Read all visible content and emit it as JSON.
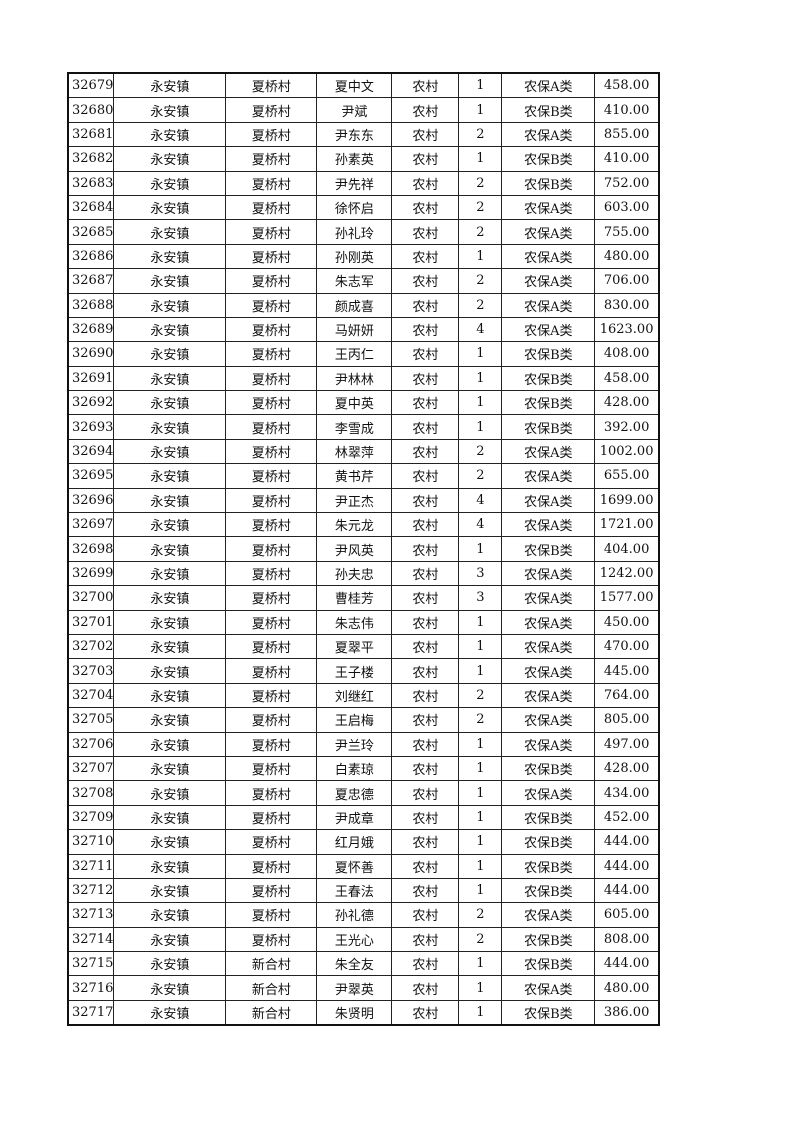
{
  "rows": [
    [
      "32679",
      "永安镇",
      "夏桥村",
      "夏中文",
      "农村",
      "1",
      "农保A类",
      "458.00"
    ],
    [
      "32680",
      "永安镇",
      "夏桥村",
      "尹斌",
      "农村",
      "1",
      "农保B类",
      "410.00"
    ],
    [
      "32681",
      "永安镇",
      "夏桥村",
      "尹东东",
      "农村",
      "2",
      "农保A类",
      "855.00"
    ],
    [
      "32682",
      "永安镇",
      "夏桥村",
      "孙素英",
      "农村",
      "1",
      "农保B类",
      "410.00"
    ],
    [
      "32683",
      "永安镇",
      "夏桥村",
      "尹先祥",
      "农村",
      "2",
      "农保B类",
      "752.00"
    ],
    [
      "32684",
      "永安镇",
      "夏桥村",
      "徐怀启",
      "农村",
      "2",
      "农保A类",
      "603.00"
    ],
    [
      "32685",
      "永安镇",
      "夏桥村",
      "孙礼玲",
      "农村",
      "2",
      "农保A类",
      "755.00"
    ],
    [
      "32686",
      "永安镇",
      "夏桥村",
      "孙刚英",
      "农村",
      "1",
      "农保A类",
      "480.00"
    ],
    [
      "32687",
      "永安镇",
      "夏桥村",
      "朱志军",
      "农村",
      "2",
      "农保A类",
      "706.00"
    ],
    [
      "32688",
      "永安镇",
      "夏桥村",
      "颜成喜",
      "农村",
      "2",
      "农保A类",
      "830.00"
    ],
    [
      "32689",
      "永安镇",
      "夏桥村",
      "马妍妍",
      "农村",
      "4",
      "农保A类",
      "1623.00"
    ],
    [
      "32690",
      "永安镇",
      "夏桥村",
      "王丙仁",
      "农村",
      "1",
      "农保B类",
      "408.00"
    ],
    [
      "32691",
      "永安镇",
      "夏桥村",
      "尹林林",
      "农村",
      "1",
      "农保B类",
      "458.00"
    ],
    [
      "32692",
      "永安镇",
      "夏桥村",
      "夏中英",
      "农村",
      "1",
      "农保B类",
      "428.00"
    ],
    [
      "32693",
      "永安镇",
      "夏桥村",
      "李雪成",
      "农村",
      "1",
      "农保B类",
      "392.00"
    ],
    [
      "32694",
      "永安镇",
      "夏桥村",
      "林翠萍",
      "农村",
      "2",
      "农保A类",
      "1002.00"
    ],
    [
      "32695",
      "永安镇",
      "夏桥村",
      "黄书芹",
      "农村",
      "2",
      "农保A类",
      "655.00"
    ],
    [
      "32696",
      "永安镇",
      "夏桥村",
      "尹正杰",
      "农村",
      "4",
      "农保A类",
      "1699.00"
    ],
    [
      "32697",
      "永安镇",
      "夏桥村",
      "朱元龙",
      "农村",
      "4",
      "农保A类",
      "1721.00"
    ],
    [
      "32698",
      "永安镇",
      "夏桥村",
      "尹风英",
      "农村",
      "1",
      "农保B类",
      "404.00"
    ],
    [
      "32699",
      "永安镇",
      "夏桥村",
      "孙夫忠",
      "农村",
      "3",
      "农保A类",
      "1242.00"
    ],
    [
      "32700",
      "永安镇",
      "夏桥村",
      "曹桂芳",
      "农村",
      "3",
      "农保A类",
      "1577.00"
    ],
    [
      "32701",
      "永安镇",
      "夏桥村",
      "朱志伟",
      "农村",
      "1",
      "农保A类",
      "450.00"
    ],
    [
      "32702",
      "永安镇",
      "夏桥村",
      "夏翠平",
      "农村",
      "1",
      "农保A类",
      "470.00"
    ],
    [
      "32703",
      "永安镇",
      "夏桥村",
      "王子楼",
      "农村",
      "1",
      "农保A类",
      "445.00"
    ],
    [
      "32704",
      "永安镇",
      "夏桥村",
      "刘继红",
      "农村",
      "2",
      "农保A类",
      "764.00"
    ],
    [
      "32705",
      "永安镇",
      "夏桥村",
      "王启梅",
      "农村",
      "2",
      "农保A类",
      "805.00"
    ],
    [
      "32706",
      "永安镇",
      "夏桥村",
      "尹兰玲",
      "农村",
      "1",
      "农保A类",
      "497.00"
    ],
    [
      "32707",
      "永安镇",
      "夏桥村",
      "白素琼",
      "农村",
      "1",
      "农保B类",
      "428.00"
    ],
    [
      "32708",
      "永安镇",
      "夏桥村",
      "夏忠德",
      "农村",
      "1",
      "农保A类",
      "434.00"
    ],
    [
      "32709",
      "永安镇",
      "夏桥村",
      "尹成章",
      "农村",
      "1",
      "农保B类",
      "452.00"
    ],
    [
      "32710",
      "永安镇",
      "夏桥村",
      "红月娥",
      "农村",
      "1",
      "农保B类",
      "444.00"
    ],
    [
      "32711",
      "永安镇",
      "夏桥村",
      "夏怀善",
      "农村",
      "1",
      "农保B类",
      "444.00"
    ],
    [
      "32712",
      "永安镇",
      "夏桥村",
      "王春法",
      "农村",
      "1",
      "农保B类",
      "444.00"
    ],
    [
      "32713",
      "永安镇",
      "夏桥村",
      "孙礼德",
      "农村",
      "2",
      "农保A类",
      "605.00"
    ],
    [
      "32714",
      "永安镇",
      "夏桥村",
      "王光心",
      "农村",
      "2",
      "农保B类",
      "808.00"
    ],
    [
      "32715",
      "永安镇",
      "新合村",
      "朱全友",
      "农村",
      "1",
      "农保B类",
      "444.00"
    ],
    [
      "32716",
      "永安镇",
      "新合村",
      "尹翠英",
      "农村",
      "1",
      "农保A类",
      "480.00"
    ],
    [
      "32717",
      "永安镇",
      "新合村",
      "朱贤明",
      "农村",
      "1",
      "农保B类",
      "386.00"
    ]
  ]
}
